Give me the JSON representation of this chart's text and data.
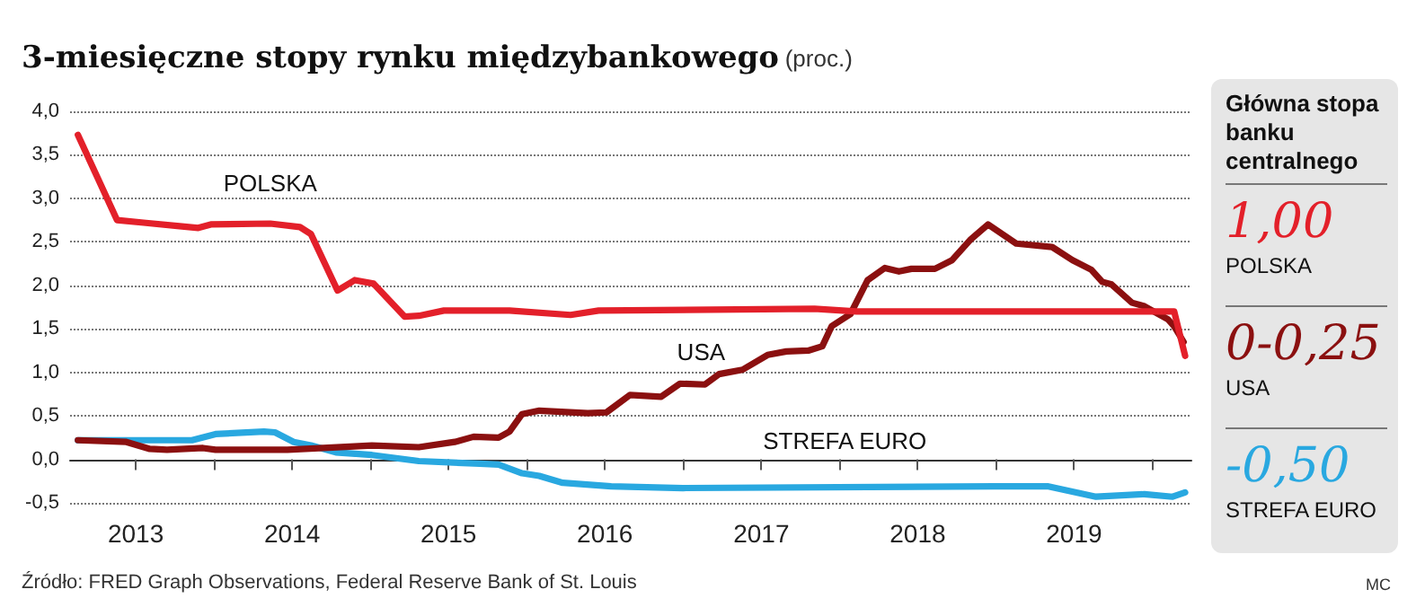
{
  "chart_data": [
    {
      "type": "line",
      "title": "3-miesięczne stopy rynku międzybankowego",
      "subtitle": "(proc.)",
      "xlim": [
        2013.08,
        2020.25
      ],
      "xticks": [
        {
          "value": 2013.5,
          "label": "2013"
        },
        {
          "value": 2014,
          "label": null
        },
        {
          "value": 2014.5,
          "label": "2014"
        },
        {
          "value": 2015,
          "label": null
        },
        {
          "value": 2015.5,
          "label": "2015"
        },
        {
          "value": 2016,
          "label": null
        },
        {
          "value": 2016.5,
          "label": "2016"
        },
        {
          "value": 2017,
          "label": null
        },
        {
          "value": 2017.5,
          "label": "2017"
        },
        {
          "value": 2018,
          "label": null
        },
        {
          "value": 2018.5,
          "label": "2018"
        },
        {
          "value": 2019,
          "label": null
        },
        {
          "value": 2019.5,
          "label": "2019"
        },
        {
          "value": 2020,
          "label": null
        }
      ],
      "ylim": [
        -0.5,
        4.0
      ],
      "yticks": [
        {
          "value": -0.5,
          "label": "-0,5"
        },
        {
          "value": 0,
          "label": "0,0"
        },
        {
          "value": 0.5,
          "label": "0,5"
        },
        {
          "value": 1,
          "label": "1,0"
        },
        {
          "value": 1.5,
          "label": "1,5"
        },
        {
          "value": 2,
          "label": "2,0"
        },
        {
          "value": 2.5,
          "label": "2,5"
        },
        {
          "value": 3,
          "label": "3,0"
        },
        {
          "value": 3.5,
          "label": "3,5"
        },
        {
          "value": 4,
          "label": "4,0"
        }
      ],
      "grid": "y",
      "legend": false,
      "series": [
        {
          "name": "POLSKA",
          "color": "#e3202a",
          "x": [
            2013.13,
            2013.38,
            2013.55,
            2013.78,
            2013.9,
            2013.98,
            2014.36,
            2014.55,
            2014.62,
            2014.79,
            2014.9,
            2015.02,
            2015.22,
            2015.31,
            2015.47,
            2015.89,
            2016.28,
            2016.46,
            2017.84,
            2018.11,
            2020.14,
            2020.21
          ],
          "values": [
            3.73,
            2.75,
            2.72,
            2.68,
            2.66,
            2.7,
            2.71,
            2.67,
            2.59,
            1.94,
            2.06,
            2.02,
            1.64,
            1.65,
            1.71,
            1.71,
            1.66,
            1.71,
            1.73,
            1.7,
            1.7,
            1.19
          ]
        },
        {
          "name": "USA",
          "color": "#8b1010",
          "x": [
            2013.13,
            2013.44,
            2013.59,
            2013.7,
            2013.93,
            2014.01,
            2014.47,
            2014.7,
            2015.01,
            2015.31,
            2015.54,
            2015.66,
            2015.82,
            2015.89,
            2015.97,
            2016.08,
            2016.39,
            2016.51,
            2016.66,
            2016.86,
            2016.98,
            2017.14,
            2017.23,
            2017.38,
            2017.54,
            2017.66,
            2017.8,
            2017.89,
            2017.95,
            2018.07,
            2018.18,
            2018.29,
            2018.38,
            2018.46,
            2018.61,
            2018.72,
            2018.84,
            2018.95,
            2019.13,
            2019.36,
            2019.49,
            2019.61,
            2019.68,
            2019.74,
            2019.87,
            2019.95,
            2020.1,
            2020.14,
            2020.2
          ],
          "values": [
            0.22,
            0.2,
            0.12,
            0.11,
            0.13,
            0.11,
            0.11,
            0.13,
            0.16,
            0.14,
            0.2,
            0.26,
            0.25,
            0.32,
            0.52,
            0.56,
            0.53,
            0.54,
            0.74,
            0.72,
            0.87,
            0.86,
            0.98,
            1.03,
            1.2,
            1.24,
            1.25,
            1.3,
            1.53,
            1.67,
            2.06,
            2.2,
            2.16,
            2.19,
            2.19,
            2.29,
            2.53,
            2.7,
            2.48,
            2.44,
            2.29,
            2.18,
            2.04,
            2.01,
            1.8,
            1.76,
            1.61,
            1.53,
            1.35
          ]
        },
        {
          "name": "STREFA EURO",
          "color": "#29a8e0",
          "x": [
            2013.13,
            2013.44,
            2013.86,
            2014.01,
            2014.32,
            2014.39,
            2014.51,
            2014.62,
            2014.78,
            2015.01,
            2015.31,
            2015.7,
            2015.82,
            2015.97,
            2016.08,
            2016.23,
            2016.54,
            2017.0,
            2018.99,
            2019.33,
            2019.64,
            2019.95,
            2020.13,
            2020.21
          ],
          "values": [
            0.22,
            0.22,
            0.22,
            0.29,
            0.32,
            0.31,
            0.2,
            0.16,
            0.08,
            0.05,
            -0.02,
            -0.05,
            -0.06,
            -0.16,
            -0.19,
            -0.27,
            -0.31,
            -0.33,
            -0.31,
            -0.31,
            -0.43,
            -0.4,
            -0.43,
            -0.38
          ]
        }
      ],
      "annotations": [
        "Źródło: FRED Graph Observations, Federal Reserve Bank of St. Louis",
        "MC"
      ]
    },
    {
      "type": "other",
      "title": "Główna stopa banku centralnego",
      "categories": [
        "POLSKA",
        "USA",
        "STREFA EURO"
      ],
      "value_labels": [
        "1,00",
        "0-0,25",
        "-0,50"
      ]
    }
  ]
}
